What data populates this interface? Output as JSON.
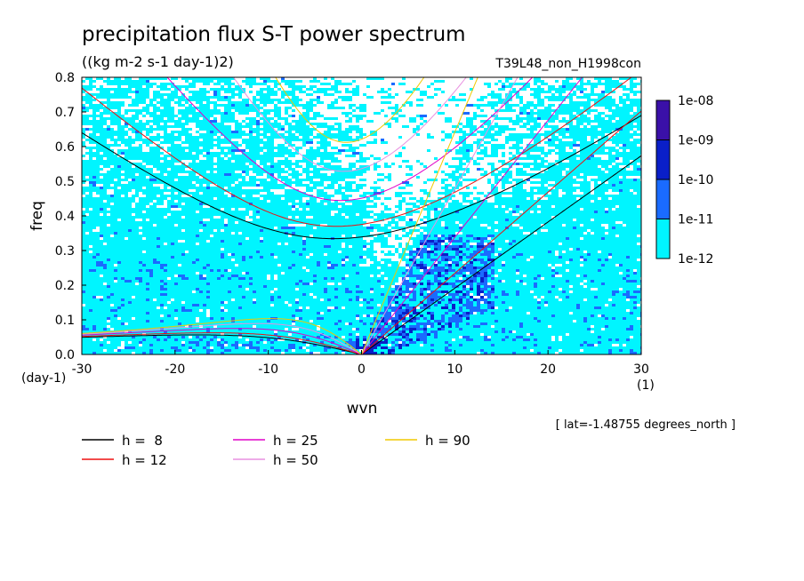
{
  "chart_data": {
    "type": "heatmap",
    "title": "precipitation flux S-T power spectrum",
    "subtitle": "((kg m-2 s-1 day-1)2)",
    "run_label": "T39L48_non_H1998con",
    "xlabel": "wvn",
    "ylabel": "freq",
    "x_unit": "(1)",
    "y_unit": "(day-1)",
    "xlim": [
      -30,
      30
    ],
    "ylim": [
      0,
      0.8
    ],
    "x_ticks": [
      -30,
      -20,
      -10,
      0,
      10,
      20,
      30
    ],
    "x_tick_labels": [
      "-30",
      "-20",
      "-10",
      "0",
      "10",
      "20",
      "30"
    ],
    "y_ticks": [
      0,
      0.1,
      0.2,
      0.3,
      0.4,
      0.5,
      0.6,
      0.7,
      0.8
    ],
    "y_tick_labels": [
      "0.0",
      "0.1",
      "0.2",
      "0.3",
      "0.4",
      "0.5",
      "0.6",
      "0.7",
      "0.8"
    ],
    "footnote": "[ lat=-1.48755 degrees_north ]",
    "colorbar": {
      "levels": [
        "1e-12",
        "1e-11",
        "1e-10",
        "1e-09",
        "1e-08"
      ],
      "colors": [
        "#00f5ff",
        "#1a6bff",
        "#0a1fc8",
        "#3a10a8"
      ]
    },
    "series": [
      {
        "name": "h =  8",
        "color": "#000000",
        "h": 8
      },
      {
        "name": "h = 12",
        "color": "#ee1010",
        "h": 12
      },
      {
        "name": "h = 25",
        "color": "#e000c8",
        "h": 25
      },
      {
        "name": "h = 50",
        "color": "#e890e0",
        "h": 50
      },
      {
        "name": "h = 90",
        "color": "#f0c800",
        "h": 90
      }
    ]
  }
}
